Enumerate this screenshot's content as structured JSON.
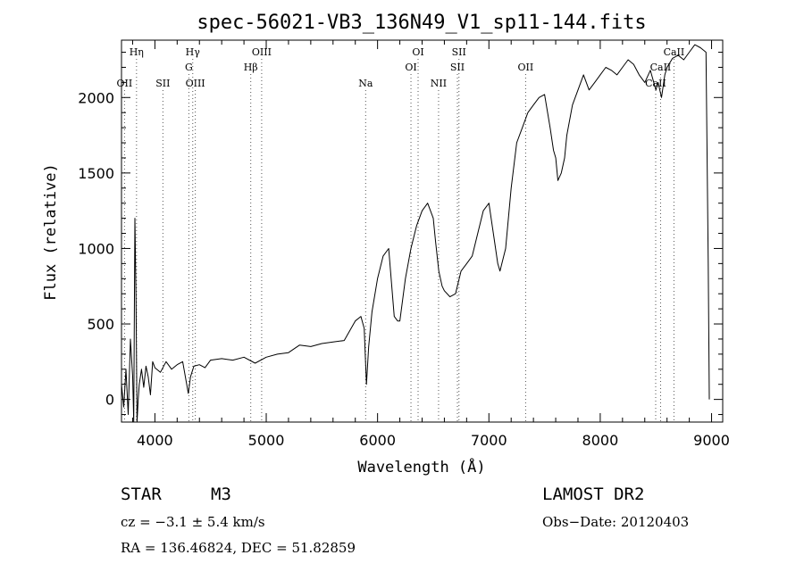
{
  "chart_data": {
    "type": "line",
    "title": "spec-56021-VB3_136N49_V1_sp11-144.fits",
    "xlabel": "Wavelength (Å)",
    "ylabel": "Flux (relative)",
    "xlim": [
      3700,
      9100
    ],
    "ylim": [
      -150,
      2380
    ],
    "xticks": [
      4000,
      5000,
      6000,
      7000,
      8000,
      9000
    ],
    "yticks": [
      0,
      500,
      1000,
      1500,
      2000
    ],
    "grid": false,
    "line_color": "#000000",
    "marker_line_color": "#555555",
    "spectral_lines": [
      {
        "label": "Hη",
        "x": 3835,
        "row": 0
      },
      {
        "label": "OII",
        "x": 3727,
        "row": 2
      },
      {
        "label": "SII",
        "x": 4072,
        "row": 2
      },
      {
        "label": "Hγ",
        "x": 4340,
        "row": 0
      },
      {
        "label": "G",
        "x": 4305,
        "row": 1
      },
      {
        "label": "OIII",
        "x": 4363,
        "row": 2
      },
      {
        "label": "OIII",
        "x": 4959,
        "row": 0
      },
      {
        "label": "Hβ",
        "x": 4861,
        "row": 1
      },
      {
        "label": "Na",
        "x": 5893,
        "row": 2
      },
      {
        "label": "OI",
        "x": 6364,
        "row": 0
      },
      {
        "label": "OI",
        "x": 6300,
        "row": 1
      },
      {
        "label": "NII",
        "x": 6548,
        "row": 2
      },
      {
        "label": "SII",
        "x": 6731,
        "row": 0
      },
      {
        "label": "SII",
        "x": 6717,
        "row": 1
      },
      {
        "label": "OII",
        "x": 7330,
        "row": 1
      },
      {
        "label": "CaII",
        "x": 8662,
        "row": 0
      },
      {
        "label": "CaII",
        "x": 8542,
        "row": 1
      },
      {
        "label": "CaII",
        "x": 8498,
        "row": 2
      }
    ],
    "series": [
      {
        "x": [
          3700,
          3720,
          3740,
          3760,
          3780,
          3800,
          3810,
          3820,
          3830,
          3840,
          3850,
          3860,
          3880,
          3900,
          3920,
          3940,
          3960,
          3980,
          4000,
          4050,
          4100,
          4150,
          4200,
          4250,
          4300,
          4320,
          4350,
          4400,
          4450,
          4500,
          4600,
          4700,
          4800,
          4900,
          5000,
          5100,
          5200,
          5300,
          5400,
          5500,
          5600,
          5700,
          5800,
          5850,
          5880,
          5900,
          5920,
          5950,
          6000,
          6050,
          6100,
          6150,
          6180,
          6200,
          6250,
          6300,
          6350,
          6400,
          6450,
          6500,
          6520,
          6550,
          6580,
          6600,
          6650,
          6700,
          6750,
          6800,
          6850,
          6900,
          6950,
          7000,
          7050,
          7080,
          7100,
          7150,
          7200,
          7250,
          7300,
          7350,
          7400,
          7450,
          7500,
          7550,
          7580,
          7600,
          7620,
          7650,
          7680,
          7700,
          7750,
          7800,
          7850,
          7900,
          7950,
          8000,
          8050,
          8100,
          8150,
          8200,
          8250,
          8300,
          8350,
          8400,
          8450,
          8500,
          8520,
          8550,
          8580,
          8600,
          8650,
          8700,
          8750,
          8800,
          8850,
          8900,
          8950,
          8970,
          8980
        ],
        "y": [
          100,
          -50,
          200,
          -100,
          400,
          150,
          -150,
          1200,
          700,
          -150,
          0,
          100,
          200,
          80,
          220,
          150,
          30,
          250,
          210,
          180,
          250,
          200,
          230,
          250,
          40,
          150,
          220,
          230,
          210,
          260,
          270,
          260,
          280,
          240,
          280,
          300,
          310,
          360,
          350,
          370,
          380,
          390,
          520,
          550,
          470,
          100,
          350,
          580,
          800,
          950,
          1000,
          550,
          520,
          520,
          800,
          1000,
          1150,
          1250,
          1300,
          1200,
          1050,
          850,
          750,
          720,
          680,
          700,
          850,
          900,
          950,
          1100,
          1250,
          1300,
          1050,
          900,
          850,
          1000,
          1400,
          1700,
          1800,
          1900,
          1950,
          2000,
          2020,
          1800,
          1650,
          1600,
          1450,
          1500,
          1600,
          1750,
          1950,
          2050,
          2150,
          2050,
          2100,
          2150,
          2200,
          2180,
          2150,
          2200,
          2250,
          2220,
          2150,
          2100,
          2180,
          2050,
          2100,
          2000,
          2150,
          2200,
          2260,
          2280,
          2250,
          2300,
          2350,
          2330,
          2300,
          900,
          0
        ]
      }
    ]
  },
  "footer": {
    "object_type": "STAR",
    "subclass": "M3",
    "cz": "cz = −3.1 ± 5.4 km/s",
    "coords": "RA = 136.46824, DEC =  51.82859",
    "survey": "LAMOST DR2",
    "obs_date": "Obs−Date: 20120403"
  }
}
